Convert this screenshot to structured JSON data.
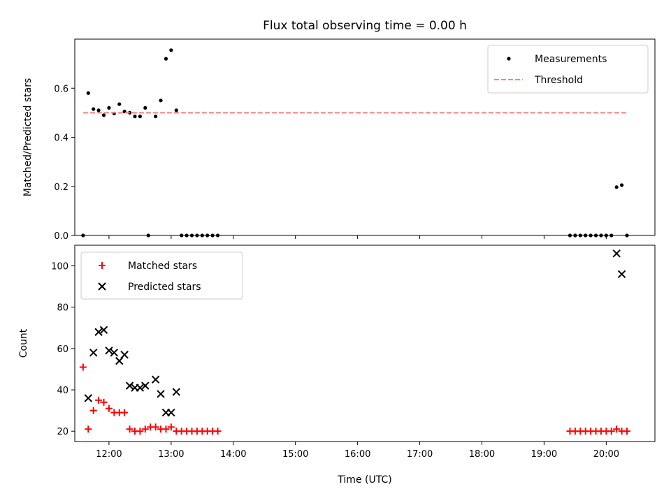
{
  "title": "Flux total observing time = 0.00 h",
  "colors": {
    "measurement": "#000000",
    "threshold": "#ff7f7f",
    "matched": "#ff0000",
    "predicted": "#000000"
  },
  "chart_data": [
    {
      "type": "scatter",
      "ylabel": "Matched/Predicted stars",
      "xlabel": "",
      "xlim": [
        "11:27",
        "20:47"
      ],
      "ylim": [
        0,
        0.8
      ],
      "yticks": [
        0.0,
        0.2,
        0.4,
        0.6
      ],
      "ytick_labels": [
        "0.0",
        "0.2",
        "0.4",
        "0.6"
      ],
      "xticks": [
        "12:00",
        "13:00",
        "14:00",
        "15:00",
        "16:00",
        "17:00",
        "18:00",
        "19:00",
        "20:00"
      ],
      "legend": {
        "position": "top-right",
        "entries": [
          "Measurements",
          "Threshold"
        ]
      },
      "series": [
        {
          "name": "Measurements",
          "kind": "scatter",
          "points": [
            [
              "11:35",
              0.0
            ],
            [
              "11:40",
              0.58
            ],
            [
              "11:45",
              0.515
            ],
            [
              "11:50",
              0.51
            ],
            [
              "11:55",
              0.49
            ],
            [
              "12:00",
              0.52
            ],
            [
              "12:05",
              0.497
            ],
            [
              "12:10",
              0.535
            ],
            [
              "12:15",
              0.505
            ],
            [
              "12:20",
              0.5
            ],
            [
              "12:25",
              0.485
            ],
            [
              "12:30",
              0.485
            ],
            [
              "12:35",
              0.52
            ],
            [
              "12:38",
              0.0
            ],
            [
              "12:45",
              0.485
            ],
            [
              "12:50",
              0.55
            ],
            [
              "12:55",
              0.72
            ],
            [
              "13:00",
              0.755
            ],
            [
              "13:05",
              0.51
            ],
            [
              "13:10",
              0.0
            ],
            [
              "13:15",
              0.0
            ],
            [
              "13:20",
              0.0
            ],
            [
              "13:25",
              0.0
            ],
            [
              "13:30",
              0.0
            ],
            [
              "13:35",
              0.0
            ],
            [
              "13:40",
              0.0
            ],
            [
              "13:45",
              0.0
            ],
            [
              "19:25",
              0.0
            ],
            [
              "19:30",
              0.0
            ],
            [
              "19:35",
              0.0
            ],
            [
              "19:40",
              0.0
            ],
            [
              "19:45",
              0.0
            ],
            [
              "19:50",
              0.0
            ],
            [
              "19:55",
              0.0
            ],
            [
              "20:00",
              0.0
            ],
            [
              "20:05",
              0.0
            ],
            [
              "20:10",
              0.197
            ],
            [
              "20:15",
              0.205
            ],
            [
              "20:20",
              0.0
            ]
          ]
        },
        {
          "name": "Threshold",
          "kind": "line",
          "style": "dashed",
          "points": [
            [
              "11:35",
              0.5
            ],
            [
              "20:20",
              0.5
            ]
          ]
        }
      ]
    },
    {
      "type": "scatter",
      "ylabel": "Count",
      "xlabel": "Time (UTC)",
      "xlim": [
        "11:27",
        "20:47"
      ],
      "ylim": [
        15,
        110
      ],
      "yticks": [
        20,
        40,
        60,
        80,
        100
      ],
      "ytick_labels": [
        "20",
        "40",
        "60",
        "80",
        "100"
      ],
      "xticks": [
        "12:00",
        "13:00",
        "14:00",
        "15:00",
        "16:00",
        "17:00",
        "18:00",
        "19:00",
        "20:00"
      ],
      "legend": {
        "position": "top-left",
        "entries": [
          "Matched stars",
          "Predicted stars"
        ]
      },
      "series": [
        {
          "name": "Matched stars",
          "marker": "plus",
          "points": [
            [
              "11:35",
              51
            ],
            [
              "11:40",
              21
            ],
            [
              "11:45",
              30
            ],
            [
              "11:50",
              35
            ],
            [
              "11:55",
              34
            ],
            [
              "12:00",
              31
            ],
            [
              "12:05",
              29
            ],
            [
              "12:10",
              29
            ],
            [
              "12:15",
              29
            ],
            [
              "12:20",
              21
            ],
            [
              "12:25",
              20
            ],
            [
              "12:30",
              20
            ],
            [
              "12:35",
              21
            ],
            [
              "12:40",
              22
            ],
            [
              "12:45",
              22
            ],
            [
              "12:50",
              21
            ],
            [
              "12:55",
              21
            ],
            [
              "13:00",
              22
            ],
            [
              "13:05",
              20
            ],
            [
              "13:10",
              20
            ],
            [
              "13:15",
              20
            ],
            [
              "13:20",
              20
            ],
            [
              "13:25",
              20
            ],
            [
              "13:30",
              20
            ],
            [
              "13:35",
              20
            ],
            [
              "13:40",
              20
            ],
            [
              "13:45",
              20
            ],
            [
              "19:25",
              20
            ],
            [
              "19:30",
              20
            ],
            [
              "19:35",
              20
            ],
            [
              "19:40",
              20
            ],
            [
              "19:45",
              20
            ],
            [
              "19:50",
              20
            ],
            [
              "19:55",
              20
            ],
            [
              "20:00",
              20
            ],
            [
              "20:05",
              20
            ],
            [
              "20:10",
              21
            ],
            [
              "20:15",
              20
            ],
            [
              "20:20",
              20
            ]
          ]
        },
        {
          "name": "Predicted stars",
          "marker": "x",
          "points": [
            [
              "11:40",
              36
            ],
            [
              "11:45",
              58
            ],
            [
              "11:50",
              68
            ],
            [
              "11:55",
              69
            ],
            [
              "12:00",
              59
            ],
            [
              "12:05",
              58
            ],
            [
              "12:10",
              54
            ],
            [
              "12:15",
              57
            ],
            [
              "12:20",
              42
            ],
            [
              "12:25",
              41
            ],
            [
              "12:30",
              41
            ],
            [
              "12:35",
              42
            ],
            [
              "12:45",
              45
            ],
            [
              "12:50",
              38
            ],
            [
              "12:55",
              29
            ],
            [
              "13:00",
              29
            ],
            [
              "13:05",
              39
            ],
            [
              "20:10",
              106
            ],
            [
              "20:15",
              96
            ]
          ]
        }
      ]
    }
  ]
}
